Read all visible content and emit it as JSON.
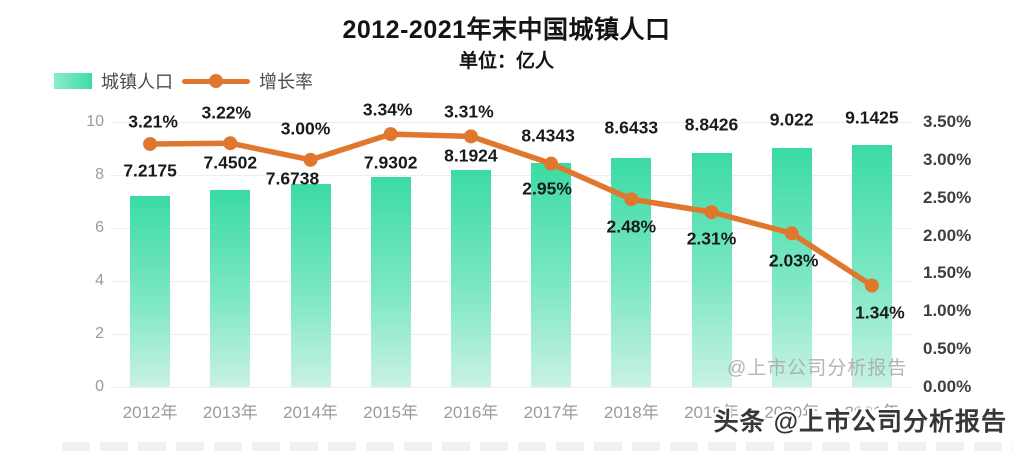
{
  "header": {
    "title": "2012-2021年末中国城镇人口",
    "subtitle": "单位：亿人"
  },
  "legend": {
    "bar_label": "城镇人口",
    "line_label": "增长率"
  },
  "colors": {
    "bar_top": "#3bdba3",
    "bar_bottom": "#c9f2e3",
    "line": "#e0772e",
    "grid": "#efeeec",
    "axis_text_gray": "#9b9b9b",
    "axis_text_dark": "#3f3f3f",
    "data_label": "#1a1a1a"
  },
  "watermarks": {
    "inner": "@上市公司分析报告",
    "bottom": "头条 @上市公司分析报告"
  },
  "chart_data": {
    "type": "bar+line",
    "title": "2012-2021年末中国城镇人口",
    "unit_label": "单位：亿人",
    "grid": true,
    "legend_position": "top-left",
    "categories": [
      "2012年",
      "2013年",
      "2014年",
      "2015年",
      "2016年",
      "2017年",
      "2018年",
      "2019年",
      "2020年",
      "2021年"
    ],
    "series": [
      {
        "name": "城镇人口",
        "type": "bar",
        "axis": "left",
        "values": [
          7.2175,
          7.4502,
          7.6738,
          7.9302,
          8.1924,
          8.4343,
          8.6433,
          8.8426,
          9.022,
          9.1425
        ],
        "labels": [
          "7.2175",
          "7.4502",
          "7.6738",
          "7.9302",
          "8.1924",
          "8.4343",
          "8.6433",
          "8.8426",
          "9.022",
          "9.1425"
        ]
      },
      {
        "name": "增长率",
        "type": "line",
        "axis": "right",
        "values_pct": [
          3.21,
          3.22,
          3.0,
          3.34,
          3.31,
          2.95,
          2.48,
          2.31,
          2.03,
          1.34
        ],
        "labels": [
          "3.21%",
          "3.22%",
          "3.00%",
          "3.34%",
          "3.31%",
          "2.95%",
          "2.48%",
          "2.31%",
          "2.03%",
          "1.34%"
        ]
      }
    ],
    "left_axis": {
      "ticks": [
        "10",
        "8",
        "6",
        "4",
        "2",
        "0"
      ],
      "range": [
        0,
        10
      ]
    },
    "right_axis": {
      "ticks": [
        "3.50%",
        "3.00%",
        "2.50%",
        "2.00%",
        "1.50%",
        "1.00%",
        "0.50%",
        "0.00%"
      ],
      "range": [
        0,
        3.5
      ]
    }
  }
}
